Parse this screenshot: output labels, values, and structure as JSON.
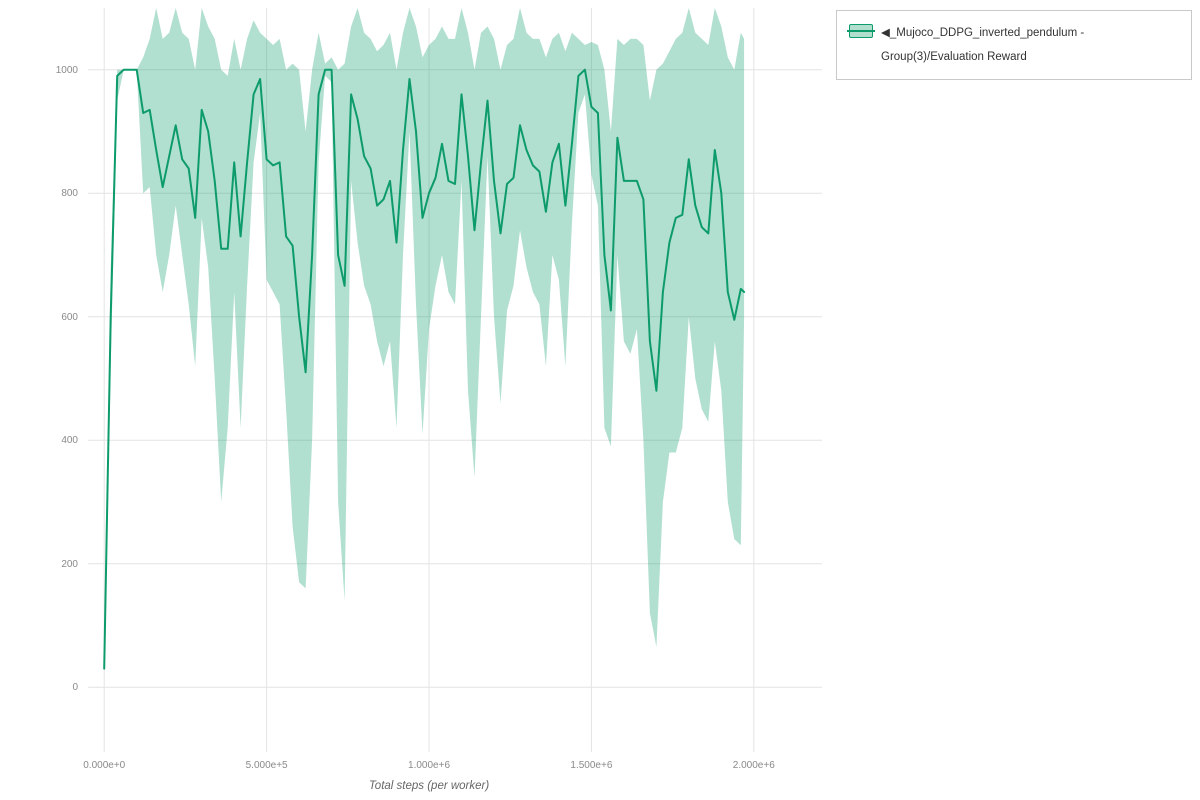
{
  "page": {
    "background": "#ffffff"
  },
  "legend": {
    "items": [
      {
        "label": "◀_Mujoco_DDPG_inverted_pendulum - Group(3)/Evaluation Reward",
        "swatch_fill": "#b2dfcd",
        "swatch_border": "#0d9b6c"
      }
    ]
  },
  "chart_data": {
    "type": "line",
    "title": "",
    "xlabel": "Total steps (per worker)",
    "ylabel": "",
    "xlim": [
      -50000,
      2210000
    ],
    "ylim": [
      -105,
      1100
    ],
    "grid": true,
    "grid_color": "#e4e4e4",
    "legend_position": "top-right",
    "x_ticks": [
      {
        "v": 0,
        "label": "0.000e+0"
      },
      {
        "v": 500000,
        "label": "5.000e+5"
      },
      {
        "v": 1000000,
        "label": "1.000e+6"
      },
      {
        "v": 1500000,
        "label": "1.500e+6"
      },
      {
        "v": 2000000,
        "label": "2.000e+6"
      }
    ],
    "y_ticks": [
      {
        "v": 0,
        "label": "0"
      },
      {
        "v": 200,
        "label": "200"
      },
      {
        "v": 400,
        "label": "400"
      },
      {
        "v": 600,
        "label": "600"
      },
      {
        "v": 800,
        "label": "800"
      },
      {
        "v": 1000,
        "label": "1000"
      }
    ],
    "series": [
      {
        "name": "◀_Mujoco_DDPG_inverted_pendulum - Group(3)/Evaluation Reward",
        "color": "#0d9b6c",
        "band_opacity": 0.32,
        "x": [
          0,
          20000,
          40000,
          60000,
          80000,
          100000,
          120000,
          140000,
          160000,
          180000,
          200000,
          220000,
          240000,
          260000,
          280000,
          300000,
          320000,
          340000,
          360000,
          380000,
          400000,
          420000,
          440000,
          460000,
          480000,
          500000,
          520000,
          540000,
          560000,
          580000,
          600000,
          620000,
          640000,
          660000,
          680000,
          700000,
          720000,
          740000,
          760000,
          780000,
          800000,
          820000,
          840000,
          860000,
          880000,
          900000,
          920000,
          940000,
          960000,
          980000,
          1000000,
          1020000,
          1040000,
          1060000,
          1080000,
          1100000,
          1120000,
          1140000,
          1160000,
          1180000,
          1200000,
          1220000,
          1240000,
          1260000,
          1280000,
          1300000,
          1320000,
          1340000,
          1360000,
          1380000,
          1400000,
          1420000,
          1440000,
          1460000,
          1480000,
          1500000,
          1520000,
          1540000,
          1560000,
          1580000,
          1600000,
          1620000,
          1640000,
          1660000,
          1680000,
          1700000,
          1720000,
          1740000,
          1760000,
          1780000,
          1800000,
          1820000,
          1840000,
          1860000,
          1880000,
          1900000,
          1920000,
          1940000,
          1960000,
          1970000
        ],
        "mean": [
          30,
          600,
          990,
          1000,
          1000,
          1000,
          930,
          935,
          870,
          810,
          860,
          910,
          855,
          840,
          760,
          935,
          900,
          820,
          710,
          710,
          850,
          730,
          850,
          960,
          985,
          855,
          845,
          850,
          730,
          715,
          600,
          510,
          700,
          960,
          1000,
          1000,
          700,
          650,
          960,
          920,
          860,
          840,
          780,
          790,
          820,
          720,
          870,
          985,
          900,
          760,
          800,
          825,
          880,
          820,
          815,
          960,
          860,
          740,
          850,
          950,
          820,
          735,
          815,
          825,
          910,
          870,
          845,
          835,
          770,
          850,
          880,
          780,
          880,
          990,
          1000,
          940,
          930,
          700,
          610,
          890,
          820,
          820,
          820,
          790,
          560,
          480,
          640,
          720,
          760,
          765,
          855,
          780,
          745,
          735,
          870,
          800,
          640,
          595,
          645,
          640
        ],
        "band_low": [
          25,
          520,
          950,
          1000,
          1000,
          1000,
          800,
          810,
          700,
          640,
          700,
          780,
          700,
          620,
          520,
          760,
          680,
          500,
          300,
          420,
          640,
          420,
          650,
          850,
          930,
          660,
          640,
          620,
          450,
          260,
          170,
          160,
          400,
          850,
          990,
          980,
          300,
          140,
          820,
          720,
          650,
          620,
          560,
          520,
          560,
          420,
          700,
          900,
          620,
          410,
          580,
          650,
          700,
          640,
          620,
          820,
          480,
          340,
          600,
          860,
          600,
          460,
          610,
          650,
          740,
          680,
          640,
          620,
          520,
          700,
          660,
          520,
          750,
          930,
          960,
          830,
          780,
          420,
          390,
          700,
          560,
          540,
          580,
          400,
          120,
          65,
          300,
          380,
          380,
          420,
          600,
          500,
          450,
          430,
          560,
          480,
          300,
          240,
          230,
          600
        ],
        "band_high": [
          35,
          680,
          1000,
          1000,
          1000,
          1000,
          1020,
          1050,
          1100,
          1050,
          1060,
          1100,
          1060,
          1050,
          1000,
          1100,
          1070,
          1050,
          1000,
          990,
          1050,
          1000,
          1050,
          1080,
          1060,
          1050,
          1040,
          1050,
          1000,
          1010,
          1000,
          900,
          1000,
          1060,
          1010,
          1020,
          1000,
          1010,
          1070,
          1100,
          1060,
          1050,
          1030,
          1040,
          1060,
          1000,
          1060,
          1100,
          1070,
          1020,
          1040,
          1050,
          1070,
          1050,
          1050,
          1100,
          1060,
          1000,
          1060,
          1070,
          1050,
          1000,
          1040,
          1050,
          1100,
          1060,
          1050,
          1050,
          1020,
          1050,
          1060,
          1030,
          1060,
          1050,
          1040,
          1045,
          1040,
          1000,
          900,
          1050,
          1040,
          1050,
          1050,
          1040,
          950,
          1000,
          1010,
          1030,
          1050,
          1060,
          1100,
          1060,
          1050,
          1040,
          1100,
          1070,
          1020,
          1000,
          1060,
          1050
        ]
      }
    ]
  }
}
